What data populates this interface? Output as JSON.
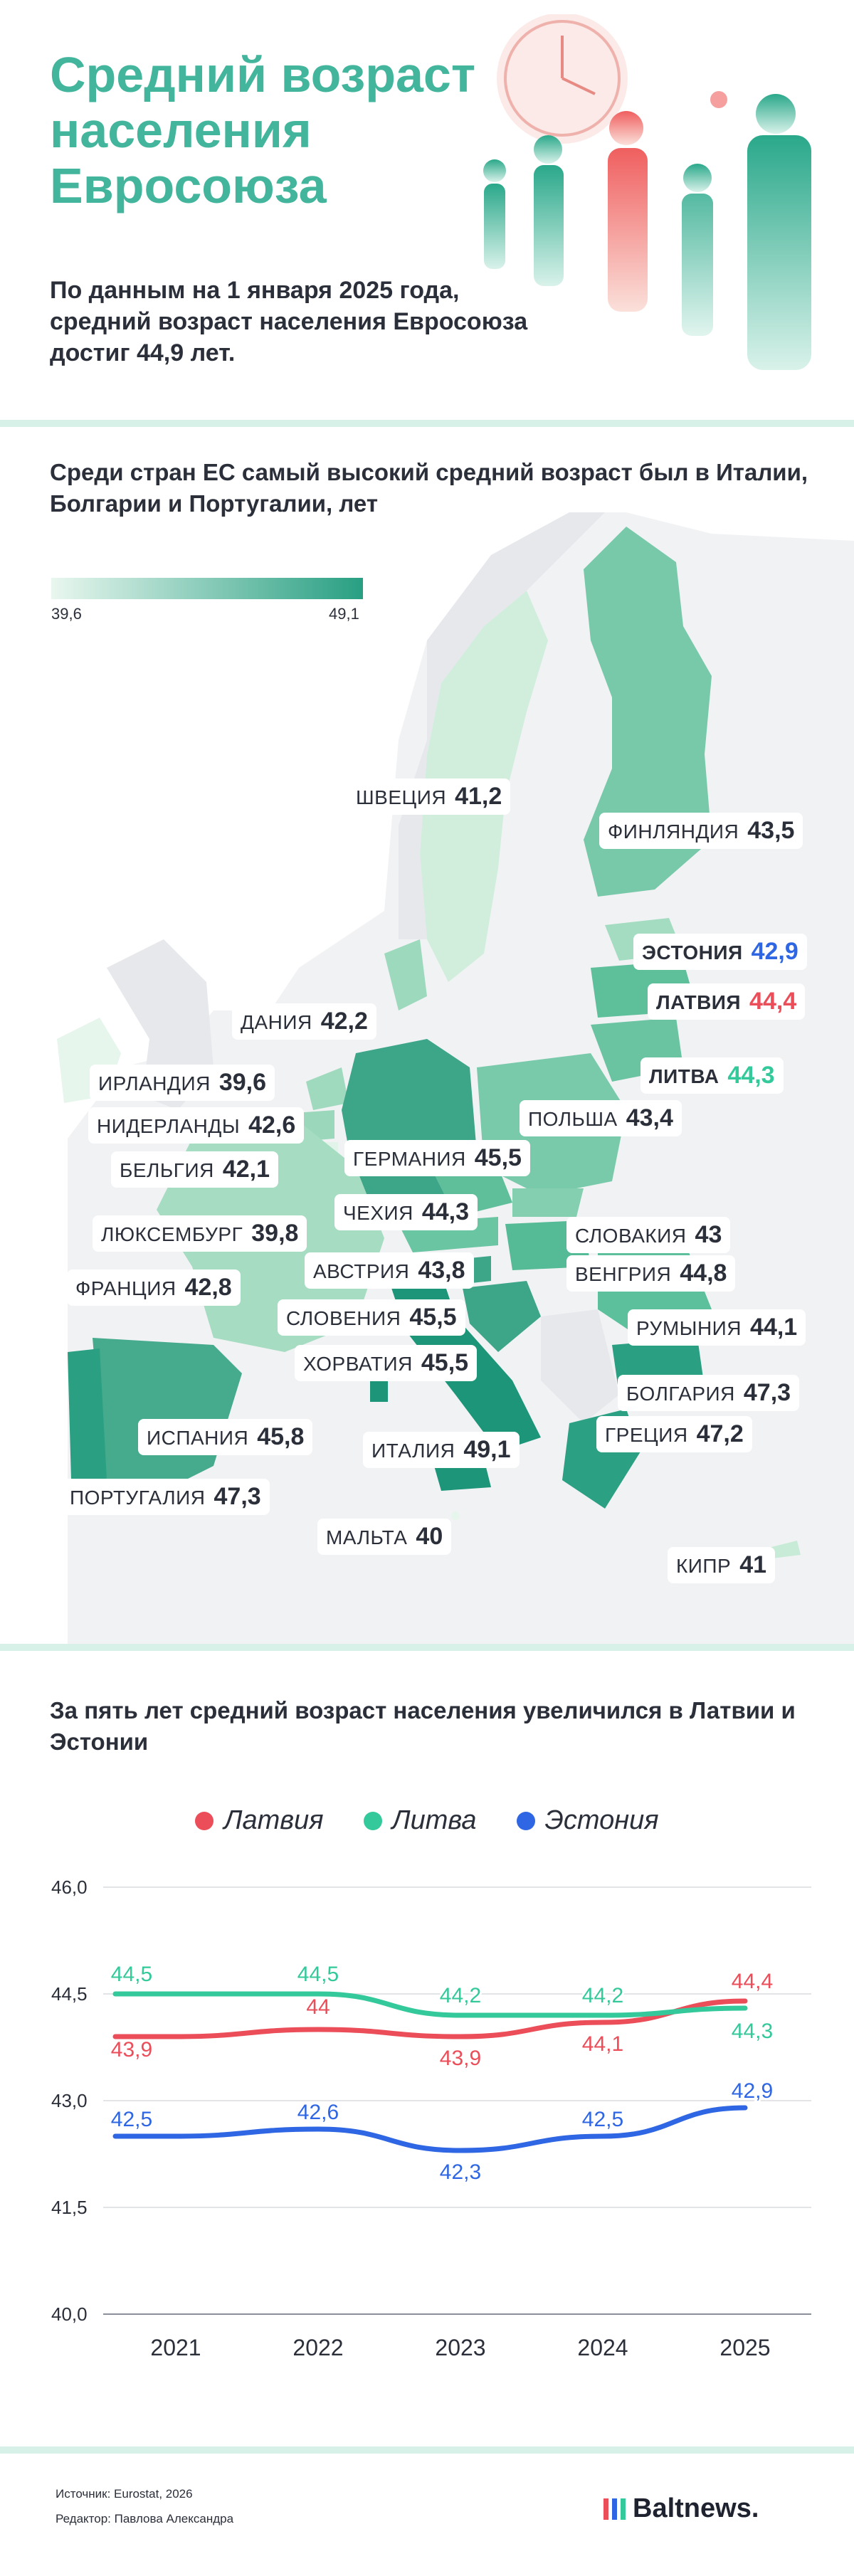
{
  "header": {
    "title_lines": [
      "Средний возраст",
      "населения",
      "Евросоюза"
    ],
    "lead": "По данным на 1 января 2025 года, средний возраст населения Евросоюза достиг 44,9 лет."
  },
  "map_section": {
    "title": "Среди стран ЕС самый высокий средний возраст был в Италии, Болгарии и Португалии, лет",
    "legend": {
      "min": "39,6",
      "max": "49,1",
      "color_low": "#e9f7ef",
      "color_high": "#289f82"
    },
    "countries": [
      {
        "name": "ШВЕЦИЯ",
        "value": "41,2"
      },
      {
        "name": "ФИНЛЯНДИЯ",
        "value": "43,5"
      },
      {
        "name": "ЭСТОНИЯ",
        "value": "42,9",
        "highlight": "blue"
      },
      {
        "name": "ЛАТВИЯ",
        "value": "44,4",
        "highlight": "red"
      },
      {
        "name": "ЛИТВА",
        "value": "44,3",
        "highlight": "green"
      },
      {
        "name": "ДАНИЯ",
        "value": "42,2"
      },
      {
        "name": "ИРЛАНДИЯ",
        "value": "39,6"
      },
      {
        "name": "НИДЕРЛАНДЫ",
        "value": "42,6"
      },
      {
        "name": "ПОЛЬША",
        "value": "43,4"
      },
      {
        "name": "БЕЛЬГИЯ",
        "value": "42,1"
      },
      {
        "name": "ГЕРМАНИЯ",
        "value": "45,5"
      },
      {
        "name": "ЧЕХИЯ",
        "value": "44,3"
      },
      {
        "name": "ЛЮКСЕМБУРГ",
        "value": "39,8"
      },
      {
        "name": "СЛОВАКИЯ",
        "value": "43"
      },
      {
        "name": "АВСТРИЯ",
        "value": "43,8"
      },
      {
        "name": "ВЕНГРИЯ",
        "value": "44,8"
      },
      {
        "name": "ФРАНЦИЯ",
        "value": "42,8"
      },
      {
        "name": "СЛОВЕНИЯ",
        "value": "45,5"
      },
      {
        "name": "РУМЫНИЯ",
        "value": "44,1"
      },
      {
        "name": "ХОРВАТИЯ",
        "value": "45,5"
      },
      {
        "name": "БОЛГАРИЯ",
        "value": "47,3"
      },
      {
        "name": "ИСПАНИЯ",
        "value": "45,8"
      },
      {
        "name": "ГРЕЦИЯ",
        "value": "47,2"
      },
      {
        "name": "ИТАЛИЯ",
        "value": "49,1"
      },
      {
        "name": "ПОРТУГАЛИЯ",
        "value": "47,3"
      },
      {
        "name": "МАЛЬТА",
        "value": "40"
      },
      {
        "name": "КИПР",
        "value": "41"
      }
    ]
  },
  "line_section": {
    "title": "За пять лет средний возраст населения увеличился в Латвии и Эстонии"
  },
  "chart_data": {
    "type": "line",
    "x": [
      "2021",
      "2022",
      "2023",
      "2024",
      "2025"
    ],
    "ylim": [
      40.0,
      46.0
    ],
    "y_ticks": [
      "40,0",
      "41,5",
      "43,0",
      "44,5",
      "46,0"
    ],
    "grid": "horizontal",
    "legend_position": "top",
    "series": [
      {
        "name": "Латвия",
        "color": "#eb4d59",
        "values": [
          43.9,
          44.0,
          43.9,
          44.1,
          44.4
        ],
        "labels": [
          "43,9",
          "44",
          "43,9",
          "44,1",
          "44,4"
        ]
      },
      {
        "name": "Литва",
        "color": "#34c99a",
        "values": [
          44.5,
          44.5,
          44.2,
          44.2,
          44.3
        ],
        "labels": [
          "44,5",
          "44,5",
          "44,2",
          "44,2",
          "44,3"
        ]
      },
      {
        "name": "Эстония",
        "color": "#2f66e3",
        "values": [
          42.5,
          42.6,
          42.3,
          42.5,
          42.9
        ],
        "labels": [
          "42,5",
          "42,6",
          "42,3",
          "42,5",
          "42,9"
        ]
      }
    ]
  },
  "footer": {
    "source": "Источник: Eurostat, 2026",
    "editor": "Редактор: Павлова Александра",
    "brand": "Baltnews.",
    "brand_colors": [
      "#eb4d59",
      "#2f66e3",
      "#34c99a"
    ]
  }
}
